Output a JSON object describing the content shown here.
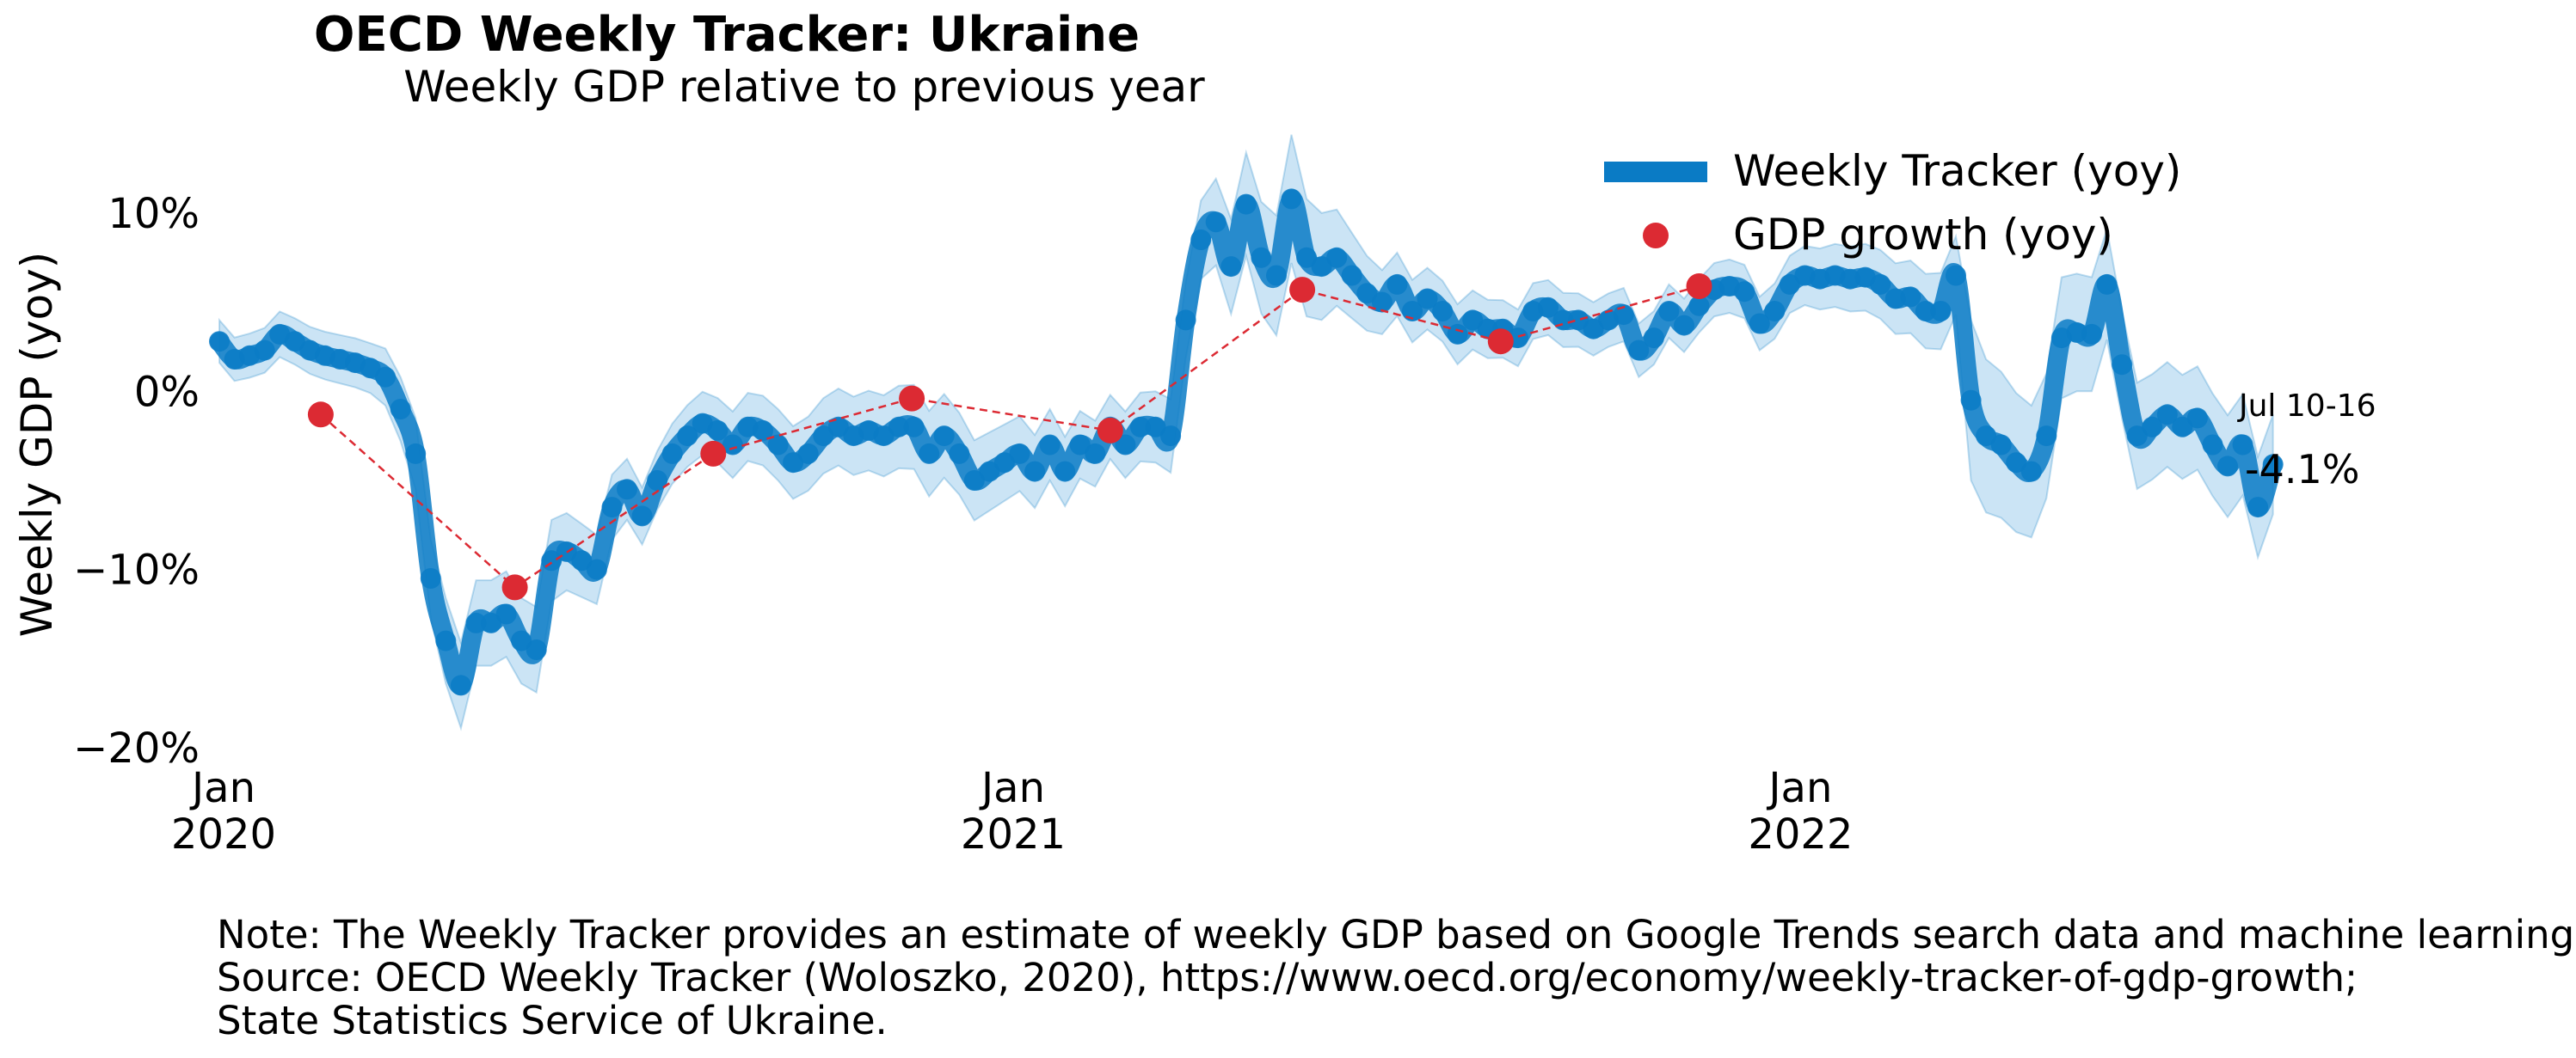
{
  "title": "OECD Weekly Tracker: Ukraine",
  "subtitle": "Weekly GDP relative to previous year",
  "notes": [
    "Note: The Weekly Tracker provides an estimate of weekly GDP based on Google Trends search data and machine learning.",
    "Source: OECD Weekly Tracker (Woloszko, 2020), https://www.oecd.org/economy/weekly-tracker-of-gdp-growth;",
    "State Statistics Service of Ukraine."
  ],
  "chart_data": {
    "type": "line",
    "ylabel": "Weekly GDP (yoy)",
    "xlabel": "",
    "ylim": [
      -20,
      14
    ],
    "grid": false,
    "legend_position": "top-right",
    "y_ticks": [
      {
        "value": 10,
        "label": "10%"
      },
      {
        "value": 0,
        "label": "0%"
      },
      {
        "value": -10,
        "label": "−10%"
      },
      {
        "value": -20,
        "label": "−20%"
      }
    ],
    "x_ticks": [
      {
        "date": "2020-01-01",
        "line1": "Jan",
        "line2": "2020"
      },
      {
        "date": "2021-01-01",
        "line1": "Jan",
        "line2": "2021"
      },
      {
        "date": "2022-01-01",
        "line1": "Jan",
        "line2": "2022"
      }
    ],
    "x_range": [
      "2019-12-30",
      "2022-07-16"
    ],
    "colors": {
      "tracker": "#0a7bc5",
      "band": "#a9d2ee",
      "gdp": "#dc2a33"
    },
    "series": [
      {
        "name": "Weekly Tracker (yoy)",
        "type": "line",
        "points": [
          [
            "2019-12-30",
            2.8
          ],
          [
            "2020-01-06",
            1.8
          ],
          [
            "2020-01-13",
            2.0
          ],
          [
            "2020-01-20",
            2.3
          ],
          [
            "2020-01-27",
            3.2
          ],
          [
            "2020-02-03",
            2.8
          ],
          [
            "2020-02-10",
            2.3
          ],
          [
            "2020-02-17",
            2.0
          ],
          [
            "2020-02-24",
            1.8
          ],
          [
            "2020-03-02",
            1.6
          ],
          [
            "2020-03-09",
            1.3
          ],
          [
            "2020-03-16",
            0.8
          ],
          [
            "2020-03-23",
            -1.0
          ],
          [
            "2020-03-30",
            -3.5
          ],
          [
            "2020-04-06",
            -10.5
          ],
          [
            "2020-04-13",
            -14.0
          ],
          [
            "2020-04-20",
            -16.5
          ],
          [
            "2020-04-27",
            -13.0
          ],
          [
            "2020-05-04",
            -13.0
          ],
          [
            "2020-05-11",
            -12.5
          ],
          [
            "2020-05-18",
            -14.0
          ],
          [
            "2020-05-25",
            -14.5
          ],
          [
            "2020-06-01",
            -9.5
          ],
          [
            "2020-06-08",
            -9.0
          ],
          [
            "2020-06-15",
            -9.5
          ],
          [
            "2020-06-22",
            -10.0
          ],
          [
            "2020-06-29",
            -6.5
          ],
          [
            "2020-07-06",
            -5.5
          ],
          [
            "2020-07-13",
            -7.0
          ],
          [
            "2020-07-20",
            -5.0
          ],
          [
            "2020-07-27",
            -3.5
          ],
          [
            "2020-08-03",
            -2.5
          ],
          [
            "2020-08-10",
            -1.8
          ],
          [
            "2020-08-17",
            -2.2
          ],
          [
            "2020-08-24",
            -3.0
          ],
          [
            "2020-08-31",
            -2.0
          ],
          [
            "2020-09-07",
            -2.2
          ],
          [
            "2020-09-14",
            -3.0
          ],
          [
            "2020-09-21",
            -4.0
          ],
          [
            "2020-09-28",
            -3.5
          ],
          [
            "2020-10-05",
            -2.5
          ],
          [
            "2020-10-12",
            -2.0
          ],
          [
            "2020-10-19",
            -2.5
          ],
          [
            "2020-10-26",
            -2.2
          ],
          [
            "2020-11-02",
            -2.5
          ],
          [
            "2020-11-09",
            -2.0
          ],
          [
            "2020-11-16",
            -2.0
          ],
          [
            "2020-11-23",
            -3.5
          ],
          [
            "2020-11-30",
            -2.5
          ],
          [
            "2020-12-07",
            -3.5
          ],
          [
            "2020-12-14",
            -5.0
          ],
          [
            "2020-12-21",
            -4.5
          ],
          [
            "2020-12-28",
            -4.0
          ],
          [
            "2021-01-04",
            -3.5
          ],
          [
            "2021-01-11",
            -4.5
          ],
          [
            "2021-01-18",
            -3.0
          ],
          [
            "2021-01-25",
            -4.5
          ],
          [
            "2021-02-01",
            -3.0
          ],
          [
            "2021-02-08",
            -3.5
          ],
          [
            "2021-02-15",
            -2.0
          ],
          [
            "2021-02-22",
            -3.0
          ],
          [
            "2021-03-01",
            -2.0
          ],
          [
            "2021-03-08",
            -2.0
          ],
          [
            "2021-03-15",
            -2.5
          ],
          [
            "2021-03-22",
            4.0
          ],
          [
            "2021-03-29",
            8.5
          ],
          [
            "2021-04-05",
            9.5
          ],
          [
            "2021-04-12",
            7.0
          ],
          [
            "2021-04-19",
            10.5
          ],
          [
            "2021-04-26",
            7.5
          ],
          [
            "2021-05-03",
            6.5
          ],
          [
            "2021-05-10",
            10.8
          ],
          [
            "2021-05-17",
            7.5
          ],
          [
            "2021-05-24",
            7.0
          ],
          [
            "2021-05-31",
            7.5
          ],
          [
            "2021-06-07",
            6.5
          ],
          [
            "2021-06-14",
            5.5
          ],
          [
            "2021-06-21",
            5.0
          ],
          [
            "2021-06-28",
            6.0
          ],
          [
            "2021-07-05",
            4.5
          ],
          [
            "2021-07-12",
            5.2
          ],
          [
            "2021-07-19",
            4.5
          ],
          [
            "2021-07-26",
            3.2
          ],
          [
            "2021-08-02",
            4.0
          ],
          [
            "2021-08-09",
            3.5
          ],
          [
            "2021-08-16",
            3.5
          ],
          [
            "2021-08-23",
            3.0
          ],
          [
            "2021-08-30",
            4.5
          ],
          [
            "2021-09-06",
            4.7
          ],
          [
            "2021-09-13",
            4.0
          ],
          [
            "2021-09-20",
            4.0
          ],
          [
            "2021-09-27",
            3.5
          ],
          [
            "2021-10-04",
            4.0
          ],
          [
            "2021-10-11",
            4.3
          ],
          [
            "2021-10-18",
            2.3
          ],
          [
            "2021-10-25",
            3.0
          ],
          [
            "2021-11-01",
            4.5
          ],
          [
            "2021-11-08",
            3.7
          ],
          [
            "2021-11-15",
            4.8
          ],
          [
            "2021-11-22",
            5.7
          ],
          [
            "2021-11-29",
            5.9
          ],
          [
            "2021-12-06",
            5.6
          ],
          [
            "2021-12-13",
            3.8
          ],
          [
            "2021-12-20",
            4.5
          ],
          [
            "2021-12-27",
            6.0
          ],
          [
            "2022-01-03",
            6.5
          ],
          [
            "2022-01-10",
            6.3
          ],
          [
            "2022-01-17",
            6.5
          ],
          [
            "2022-01-24",
            6.3
          ],
          [
            "2022-01-31",
            6.4
          ],
          [
            "2022-02-07",
            6.0
          ],
          [
            "2022-02-14",
            5.2
          ],
          [
            "2022-02-21",
            5.3
          ],
          [
            "2022-02-28",
            4.5
          ],
          [
            "2022-03-07",
            4.5
          ],
          [
            "2022-03-14",
            6.5
          ],
          [
            "2022-03-21",
            -0.5
          ],
          [
            "2022-03-28",
            -2.5
          ],
          [
            "2022-04-04",
            -3.0
          ],
          [
            "2022-04-11",
            -4.0
          ],
          [
            "2022-04-18",
            -4.5
          ],
          [
            "2022-04-25",
            -2.5
          ],
          [
            "2022-05-02",
            3.0
          ],
          [
            "2022-05-09",
            3.3
          ],
          [
            "2022-05-16",
            3.2
          ],
          [
            "2022-05-23",
            6.0
          ],
          [
            "2022-05-30",
            1.5
          ],
          [
            "2022-06-06",
            -2.5
          ],
          [
            "2022-06-13",
            -2.0
          ],
          [
            "2022-06-20",
            -1.3
          ],
          [
            "2022-06-27",
            -2.0
          ],
          [
            "2022-07-04",
            -1.5
          ],
          [
            "2022-07-11",
            -3.0
          ],
          [
            "2022-07-18",
            -4.2
          ],
          [
            "2022-07-25",
            -3.0
          ],
          [
            "2022-08-01",
            -6.5
          ],
          [
            "2022-08-08",
            -4.1
          ]
        ],
        "band_halfwidth": [
          [
            "2019-12-30",
            1.2
          ],
          [
            "2020-03-09",
            1.4
          ],
          [
            "2020-04-13",
            2.4
          ],
          [
            "2020-05-25",
            2.4
          ],
          [
            "2020-07-13",
            1.6
          ],
          [
            "2020-09-14",
            2.0
          ],
          [
            "2020-11-23",
            2.4
          ],
          [
            "2021-02-15",
            1.8
          ],
          [
            "2021-03-29",
            2.2
          ],
          [
            "2021-05-10",
            3.6
          ],
          [
            "2021-06-21",
            1.8
          ],
          [
            "2021-09-20",
            1.5
          ],
          [
            "2021-12-13",
            1.5
          ],
          [
            "2022-03-14",
            2.2
          ],
          [
            "2022-03-21",
            4.5
          ],
          [
            "2022-04-25",
            3.5
          ],
          [
            "2022-05-30",
            3.0
          ],
          [
            "2022-08-08",
            2.8
          ]
        ]
      },
      {
        "name": "GDP growth (yoy)",
        "type": "scatter",
        "points": [
          [
            "2020-02-15",
            -1.3
          ],
          [
            "2020-05-15",
            -11.0
          ],
          [
            "2020-08-15",
            -3.5
          ],
          [
            "2020-11-15",
            -0.4
          ],
          [
            "2021-02-15",
            -2.2
          ],
          [
            "2021-05-15",
            5.7
          ],
          [
            "2021-08-15",
            2.8
          ],
          [
            "2021-11-15",
            5.9
          ]
        ]
      }
    ],
    "end_annotation": {
      "date_label": "Jul 10-16",
      "value_label": "-4.1%"
    }
  },
  "legend": [
    {
      "label": "Weekly Tracker (yoy)",
      "marker": "line",
      "color": "#0a7bc5"
    },
    {
      "label": "GDP growth (yoy)",
      "marker": "dot",
      "color": "#dc2a33"
    }
  ]
}
